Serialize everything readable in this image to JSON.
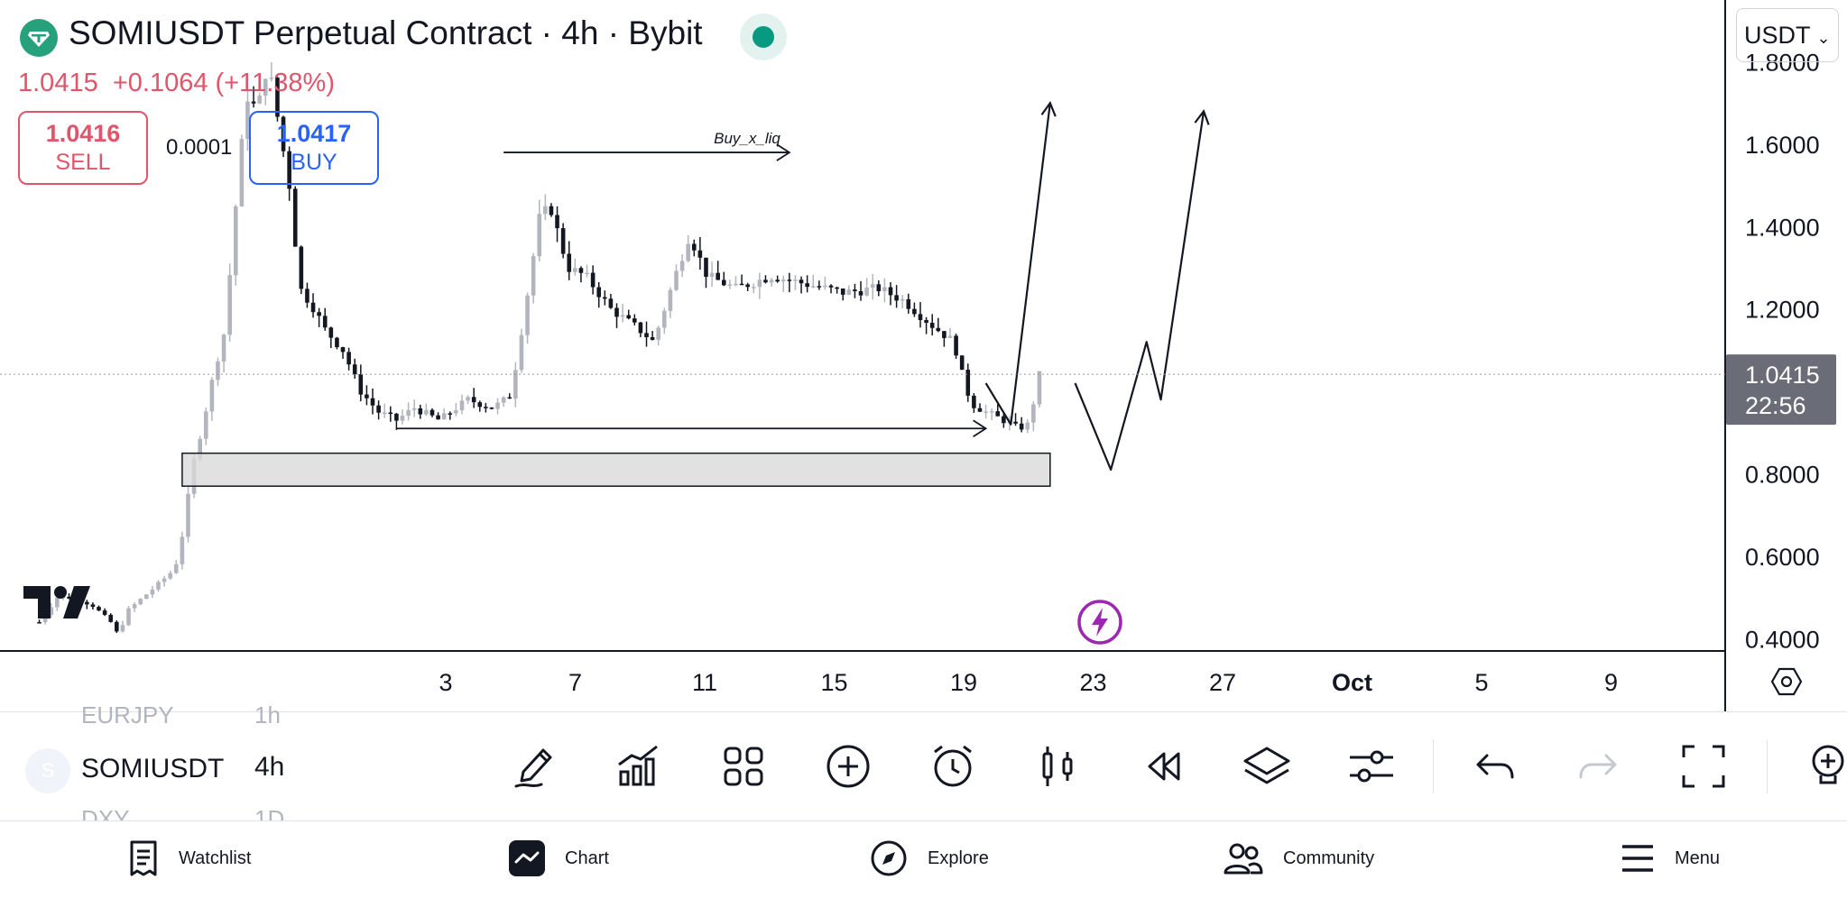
{
  "header": {
    "title": "SOMIUSDT Perpetual Contract · 4h · Bybit",
    "last_price": "1.0415",
    "change": "+0.1064 (+11.38%)",
    "sell_price": "1.0416",
    "sell_label": "SELL",
    "spread": "0.0001",
    "buy_price": "1.0417",
    "buy_label": "BUY",
    "currency": "USDT"
  },
  "colors": {
    "up_candle": "#b2b5be",
    "down_candle": "#131722",
    "sell": "#e0556a",
    "buy": "#2962ff",
    "zone_fill": "#d9d9d9"
  },
  "chart_data": {
    "type": "candlestick",
    "symbol": "SOMIUSDT",
    "interval": "4h",
    "price_axis": {
      "ticks": [
        "1.8000",
        "1.6000",
        "1.4000",
        "1.2000",
        "0.8000",
        "0.6000",
        "0.4000"
      ],
      "current_label": "1.0415",
      "countdown": "22:56",
      "current_price": 1.0415
    },
    "x_axis": {
      "ticks": [
        "3",
        "7",
        "11",
        "15",
        "19",
        "23",
        "27",
        "Oct",
        "5",
        "9"
      ],
      "bold_ticks": [
        "Oct"
      ]
    },
    "ylim": [
      0.37,
      1.95
    ],
    "xlim_days": [
      -1.1,
      47.2
    ],
    "key_points": [
      {
        "day": 0.0,
        "price": 0.44
      },
      {
        "day": 0.5,
        "price": 0.5
      },
      {
        "day": 1.0,
        "price": 0.5
      },
      {
        "day": 1.5,
        "price": 0.48
      },
      {
        "day": 2.0,
        "price": 0.44
      },
      {
        "day": 2.2,
        "price": 0.41
      },
      {
        "day": 2.5,
        "price": 0.47
      },
      {
        "day": 3.3,
        "price": 0.53
      },
      {
        "day": 3.8,
        "price": 0.57
      },
      {
        "day": 4.0,
        "price": 0.65
      },
      {
        "day": 4.3,
        "price": 0.82
      },
      {
        "day": 4.6,
        "price": 0.93
      },
      {
        "day": 4.9,
        "price": 1.05
      },
      {
        "day": 5.2,
        "price": 1.15
      },
      {
        "day": 5.5,
        "price": 1.45
      },
      {
        "day": 5.8,
        "price": 1.72
      },
      {
        "day": 6.1,
        "price": 1.68
      },
      {
        "day": 6.4,
        "price": 1.8
      },
      {
        "day": 6.8,
        "price": 1.6
      },
      {
        "day": 7.0,
        "price": 1.5
      },
      {
        "day": 7.3,
        "price": 1.25
      },
      {
        "day": 7.7,
        "price": 1.2
      },
      {
        "day": 8.0,
        "price": 1.15
      },
      {
        "day": 8.5,
        "price": 1.1
      },
      {
        "day": 9.0,
        "price": 1.0
      },
      {
        "day": 9.5,
        "price": 0.95
      },
      {
        "day": 10.0,
        "price": 0.93
      },
      {
        "day": 10.5,
        "price": 0.96
      },
      {
        "day": 11.2,
        "price": 0.93
      },
      {
        "day": 12.0,
        "price": 0.98
      },
      {
        "day": 12.7,
        "price": 0.96
      },
      {
        "day": 13.2,
        "price": 0.99
      },
      {
        "day": 13.6,
        "price": 1.2
      },
      {
        "day": 14.0,
        "price": 1.42
      },
      {
        "day": 14.3,
        "price": 1.45
      },
      {
        "day": 14.8,
        "price": 1.3
      },
      {
        "day": 15.3,
        "price": 1.28
      },
      {
        "day": 16.0,
        "price": 1.2
      },
      {
        "day": 16.8,
        "price": 1.15
      },
      {
        "day": 17.2,
        "price": 1.12
      },
      {
        "day": 17.8,
        "price": 1.28
      },
      {
        "day": 18.2,
        "price": 1.38
      },
      {
        "day": 18.7,
        "price": 1.28
      },
      {
        "day": 19.5,
        "price": 1.25
      },
      {
        "day": 20.5,
        "price": 1.28
      },
      {
        "day": 21.5,
        "price": 1.26
      },
      {
        "day": 22.5,
        "price": 1.24
      },
      {
        "day": 23.5,
        "price": 1.25
      },
      {
        "day": 24.2,
        "price": 1.22
      },
      {
        "day": 25.0,
        "price": 1.16
      },
      {
        "day": 25.6,
        "price": 1.12
      },
      {
        "day": 25.9,
        "price": 1.02
      },
      {
        "day": 26.1,
        "price": 0.97
      },
      {
        "day": 26.5,
        "price": 0.95
      },
      {
        "day": 27.0,
        "price": 0.93
      },
      {
        "day": 27.4,
        "price": 0.91
      },
      {
        "day": 27.7,
        "price": 0.92
      },
      {
        "day": 28.0,
        "price": 1.04
      }
    ],
    "annotations": {
      "demand_zone": {
        "day_start": 4.0,
        "day_end": 28.3,
        "price_low": 0.77,
        "price_high": 0.85
      },
      "liquidity_line": {
        "day_start": 10.0,
        "day_end": 26.5,
        "price": 0.91
      },
      "buy_liq_line": {
        "day_start": 13.0,
        "day_end": 21.0,
        "price": 1.58,
        "label": "Buy_x_liq"
      },
      "path_1": [
        {
          "day": 26.5,
          "price": 1.02
        },
        {
          "day": 27.2,
          "price": 0.92
        },
        {
          "day": 28.3,
          "price": 1.7
        }
      ],
      "path_2": [
        {
          "day": 29.0,
          "price": 1.02
        },
        {
          "day": 30.0,
          "price": 0.81
        },
        {
          "day": 31.0,
          "price": 1.12
        },
        {
          "day": 31.4,
          "price": 0.98
        },
        {
          "day": 32.6,
          "price": 1.68
        }
      ]
    }
  },
  "symbols": {
    "prev": {
      "name": "EURJPY",
      "interval": "1h"
    },
    "current": {
      "name": "SOMIUSDT",
      "interval": "4h"
    },
    "next": {
      "name": "DXY",
      "interval": "1D"
    },
    "avatar_letter": "S"
  },
  "toolbar": [
    {
      "name": "draw-tool-icon"
    },
    {
      "name": "indicators-icon"
    },
    {
      "name": "layouts-icon"
    },
    {
      "name": "add-icon"
    },
    {
      "name": "alert-icon"
    },
    {
      "name": "chart-type-icon"
    },
    {
      "name": "replay-icon"
    },
    {
      "name": "layers-icon"
    },
    {
      "name": "settings-sliders-icon"
    },
    {
      "name": "undo-icon"
    },
    {
      "name": "redo-icon"
    },
    {
      "name": "fullscreen-icon"
    },
    {
      "name": "ideas-icon"
    }
  ],
  "nav": {
    "watchlist": "Watchlist",
    "chart": "Chart",
    "explore": "Explore",
    "community": "Community",
    "menu": "Menu"
  }
}
